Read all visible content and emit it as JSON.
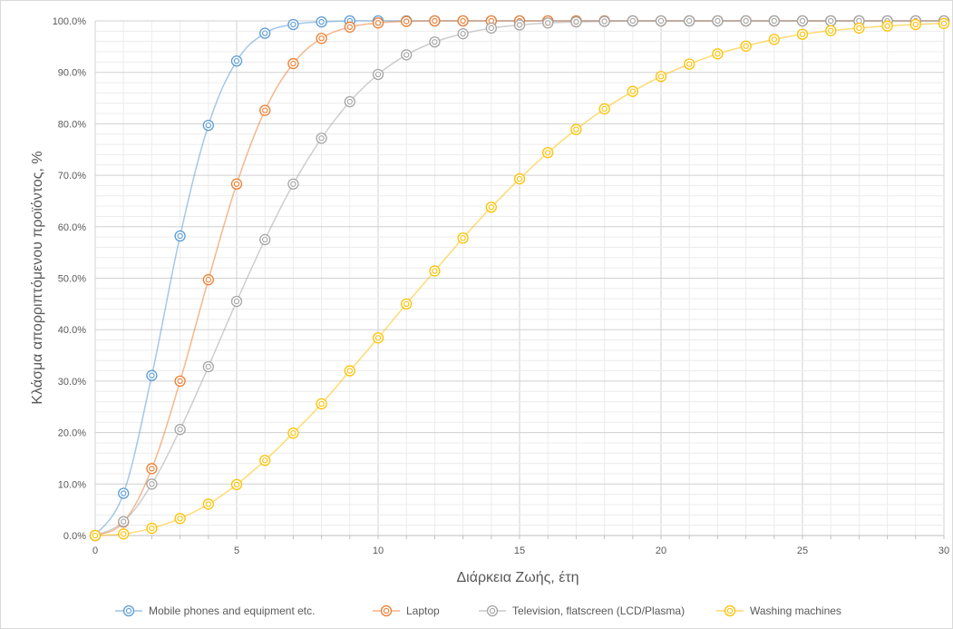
{
  "chart_data": {
    "type": "line",
    "title": "",
    "xlabel": "Διάρκεια Ζωής, έτη",
    "ylabel": "Κλάσμα απορριπτόμενου προϊόντος, %",
    "xlim": [
      0,
      30
    ],
    "ylim": [
      0,
      100
    ],
    "x_ticks": [
      "0",
      "5",
      "10",
      "15",
      "20",
      "25",
      "30"
    ],
    "y_ticks": [
      "0.0%",
      "10.0%",
      "20.0%",
      "30.0%",
      "40.0%",
      "50.0%",
      "60.0%",
      "70.0%",
      "80.0%",
      "90.0%",
      "100.0%"
    ],
    "grid": "on",
    "legend_position": "bottom",
    "x": [
      0,
      1,
      2,
      3,
      4,
      5,
      6,
      7,
      8,
      9,
      10,
      11,
      12,
      13,
      14,
      15,
      16,
      17,
      18,
      19,
      20,
      21,
      22,
      23,
      24,
      25,
      26,
      27,
      28,
      29,
      30
    ],
    "series": [
      {
        "name": "Mobile phones and equipment etc.",
        "color": "#5b9bd5",
        "values": [
          0,
          8.2,
          31.1,
          58.2,
          79.7,
          92.2,
          97.6,
          99.3,
          99.8,
          100,
          100,
          100,
          100,
          100,
          100,
          100,
          100,
          100,
          100,
          100,
          100,
          100,
          100,
          100,
          100,
          100,
          100,
          100,
          100,
          100,
          100
        ]
      },
      {
        "name": "Laptop",
        "color": "#ed7d31",
        "values": [
          0,
          2.6,
          13.0,
          30.0,
          49.7,
          68.3,
          82.6,
          91.7,
          96.6,
          98.8,
          99.6,
          99.9,
          100,
          100,
          100,
          100,
          100,
          100,
          100,
          100,
          100,
          100,
          100,
          100,
          100,
          100,
          100,
          100,
          100,
          100,
          100
        ]
      },
      {
        "name": "Television, flatscreen (LCD/Plasma)",
        "color": "#a5a5a5",
        "values": [
          0,
          2.7,
          10.0,
          20.6,
          32.8,
          45.5,
          57.5,
          68.3,
          77.2,
          84.3,
          89.6,
          93.4,
          95.9,
          97.5,
          98.6,
          99.2,
          99.6,
          99.8,
          99.9,
          100,
          100,
          100,
          100,
          100,
          100,
          100,
          100,
          100,
          100,
          100,
          100
        ]
      },
      {
        "name": "Washing machines",
        "color": "#ffc000",
        "values": [
          0,
          0.3,
          1.4,
          3.3,
          6.1,
          9.9,
          14.6,
          19.9,
          25.6,
          32.0,
          38.4,
          45.0,
          51.4,
          57.8,
          63.8,
          69.3,
          74.4,
          78.9,
          82.9,
          86.3,
          89.2,
          91.6,
          93.6,
          95.1,
          96.4,
          97.4,
          98.1,
          98.6,
          99.0,
          99.3,
          99.5
        ]
      }
    ]
  }
}
